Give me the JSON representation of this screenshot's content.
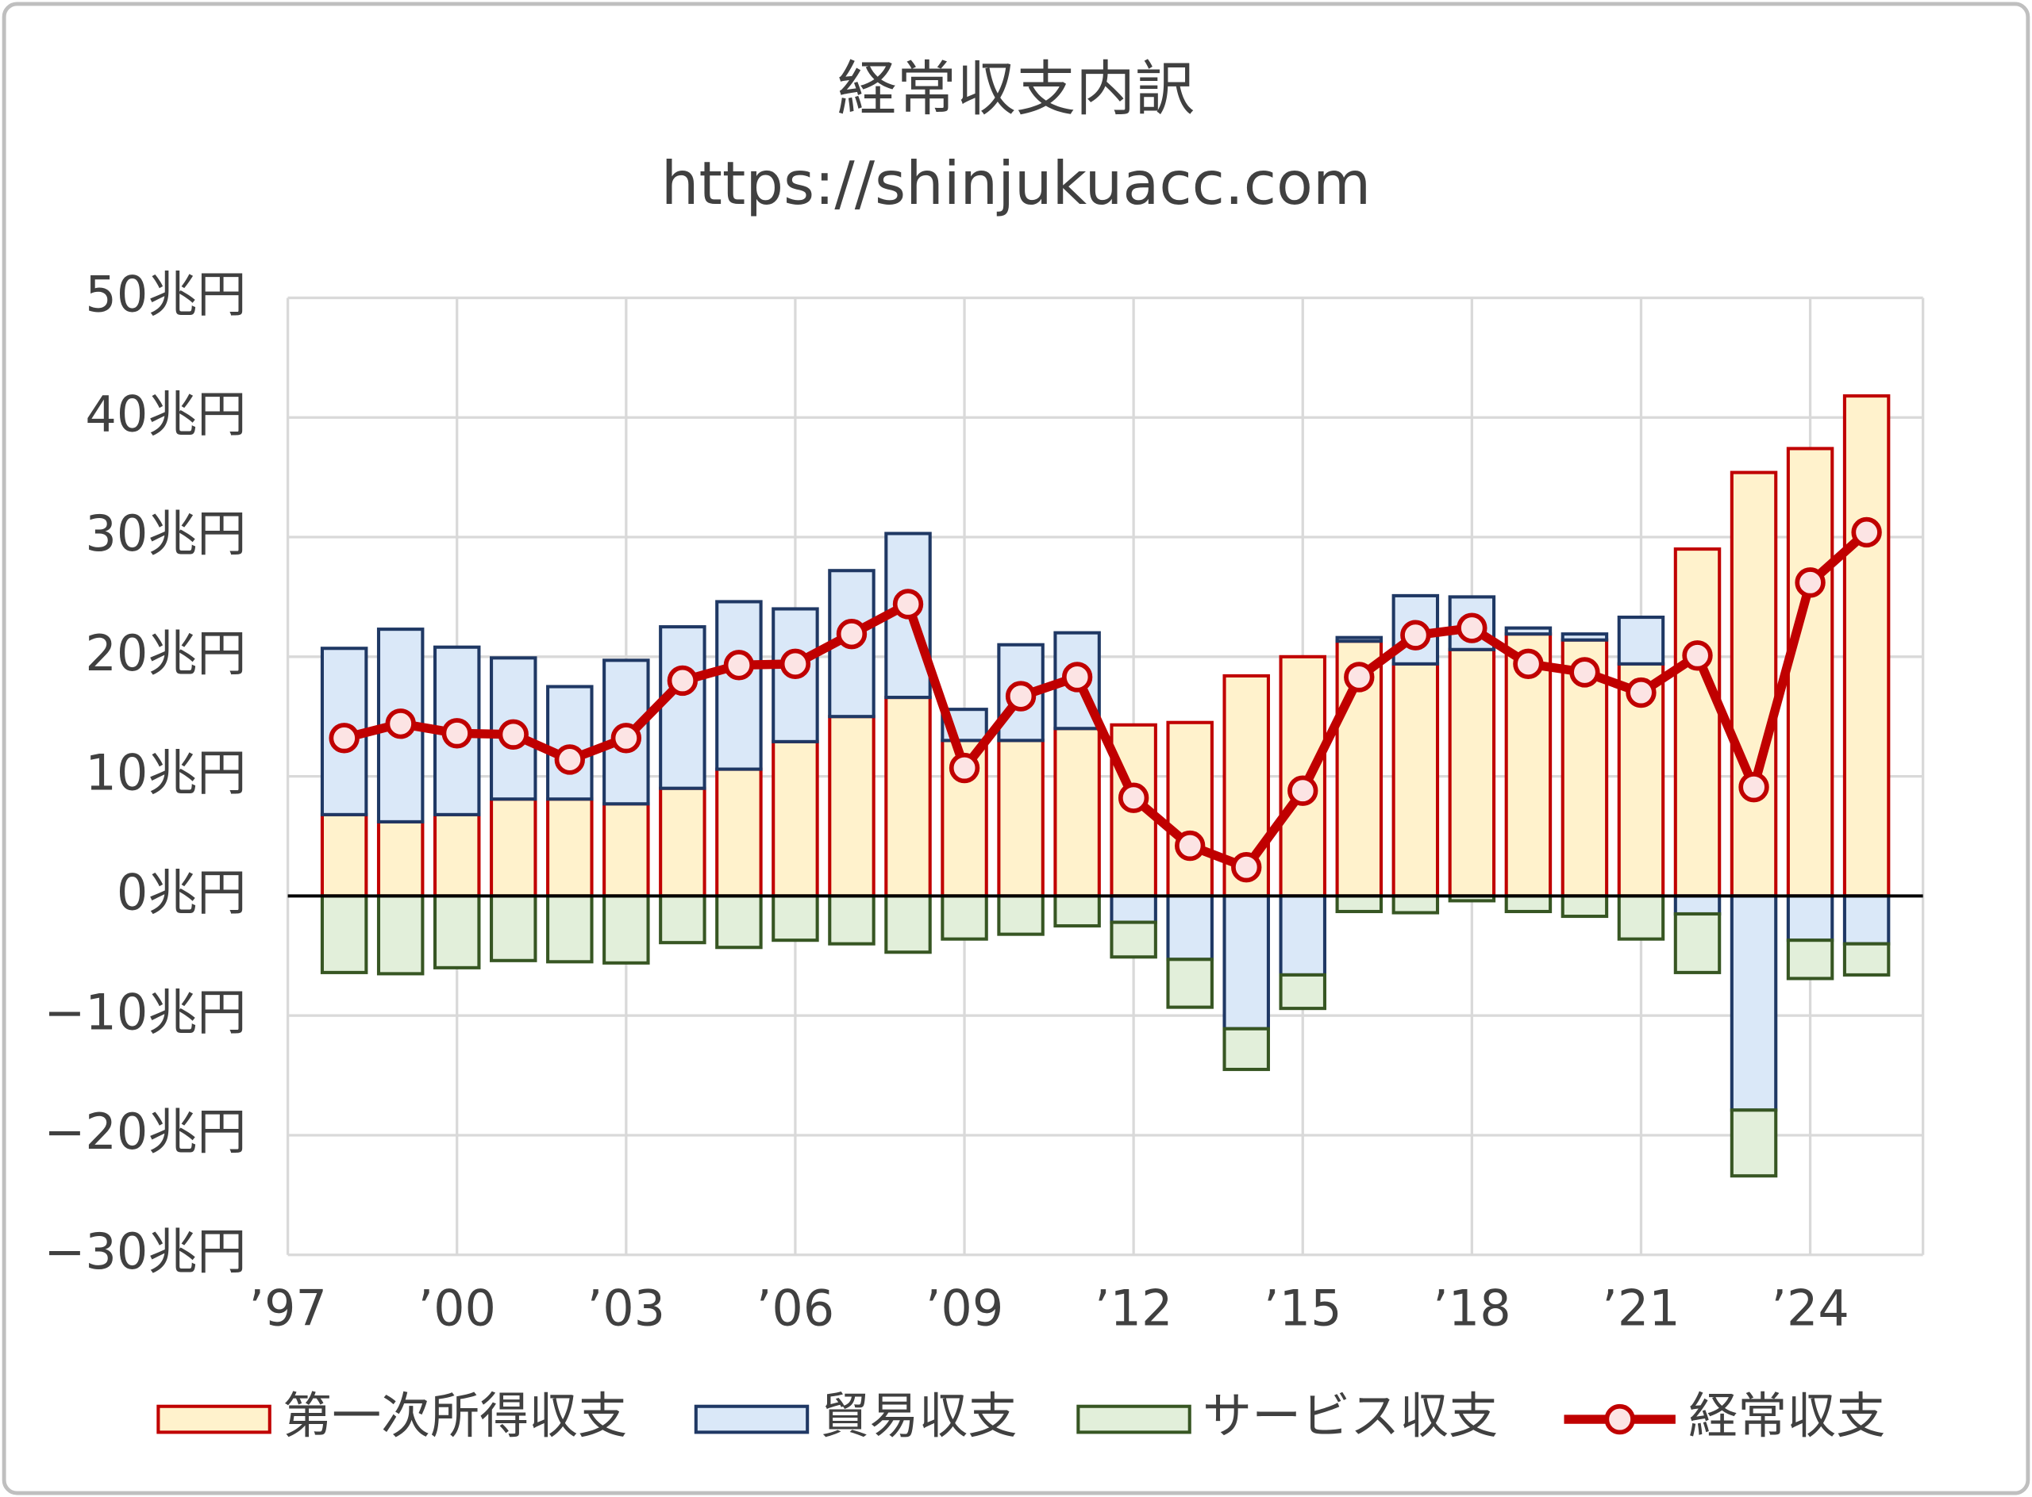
{
  "chart_data": {
    "type": "stacked-bar-line",
    "title": "経常収支内訳",
    "subtitle": "https://shinjukuacc.com",
    "x": [
      1998,
      1999,
      2000,
      2001,
      2002,
      2003,
      2004,
      2005,
      2006,
      2007,
      2008,
      2009,
      2010,
      2011,
      2012,
      2013,
      2014,
      2015,
      2016,
      2017,
      2018,
      2019,
      2020,
      2021,
      2022,
      2023,
      2024,
      2025
    ],
    "xlim": [
      1997,
      2026
    ],
    "xticks": [
      {
        "value": 1997,
        "label": "’97"
      },
      {
        "value": 2000,
        "label": "’00"
      },
      {
        "value": 2003,
        "label": "’03"
      },
      {
        "value": 2006,
        "label": "’06"
      },
      {
        "value": 2009,
        "label": "’09"
      },
      {
        "value": 2012,
        "label": "’12"
      },
      {
        "value": 2015,
        "label": "’15"
      },
      {
        "value": 2018,
        "label": "’18"
      },
      {
        "value": 2021,
        "label": "’21"
      },
      {
        "value": 2024,
        "label": "’24"
      }
    ],
    "ylim": [
      -30,
      50
    ],
    "yticks": [
      {
        "value": -30,
        "label": "−30兆円"
      },
      {
        "value": -20,
        "label": "−20兆円"
      },
      {
        "value": -10,
        "label": "−10兆円"
      },
      {
        "value": 0,
        "label": "0兆円"
      },
      {
        "value": 10,
        "label": "10兆円"
      },
      {
        "value": 20,
        "label": "20兆円"
      },
      {
        "value": 30,
        "label": "30兆円"
      },
      {
        "value": 40,
        "label": "40兆円"
      },
      {
        "value": 50,
        "label": "50兆円"
      }
    ],
    "grid": true,
    "series": [
      {
        "name": "第一次所得収支",
        "kind": "bar",
        "color": "#c00000",
        "fill": "#fff2cc",
        "values": [
          6.8,
          6.2,
          6.8,
          8.1,
          8.1,
          7.7,
          9.0,
          10.6,
          12.9,
          15.0,
          16.6,
          13.0,
          13.0,
          14.0,
          14.3,
          14.5,
          18.4,
          20.0,
          21.3,
          19.4,
          20.6,
          21.9,
          21.4,
          19.4,
          29.0,
          35.4,
          37.4,
          41.8
        ]
      },
      {
        "name": "貿易収支",
        "kind": "bar",
        "color": "#1f3864",
        "fill": "#dae8f8",
        "values": [
          13.9,
          16.1,
          14.0,
          11.8,
          9.4,
          12.0,
          13.5,
          14.0,
          11.1,
          12.2,
          13.7,
          2.6,
          8.0,
          8.0,
          -2.2,
          -5.3,
          -11.1,
          -6.6,
          0.3,
          5.7,
          4.4,
          0.5,
          0.5,
          3.9,
          -1.5,
          -17.9,
          -3.7,
          -4.0
        ]
      },
      {
        "name": "サービス収支",
        "kind": "bar",
        "color": "#375623",
        "fill": "#e2efda",
        "values": [
          -6.4,
          -6.5,
          -6.0,
          -5.4,
          -5.5,
          -5.6,
          -3.9,
          -4.3,
          -3.7,
          -4.0,
          -4.7,
          -3.6,
          -3.2,
          -2.5,
          -2.9,
          -4.0,
          -3.4,
          -2.8,
          -1.3,
          -1.4,
          -0.4,
          -1.3,
          -1.7,
          -3.6,
          -4.9,
          -5.5,
          -3.2,
          -2.6
        ]
      },
      {
        "name": "経常収支",
        "kind": "line",
        "color": "#c00000",
        "fill": "#fce4e4",
        "values": [
          13.2,
          14.4,
          13.6,
          13.5,
          11.4,
          13.2,
          18.0,
          19.3,
          19.4,
          21.9,
          24.4,
          10.7,
          16.7,
          18.3,
          8.2,
          4.2,
          2.4,
          8.8,
          18.3,
          21.8,
          22.4,
          19.4,
          18.7,
          17.0,
          20.1,
          9.1,
          26.2,
          30.4
        ]
      }
    ]
  }
}
